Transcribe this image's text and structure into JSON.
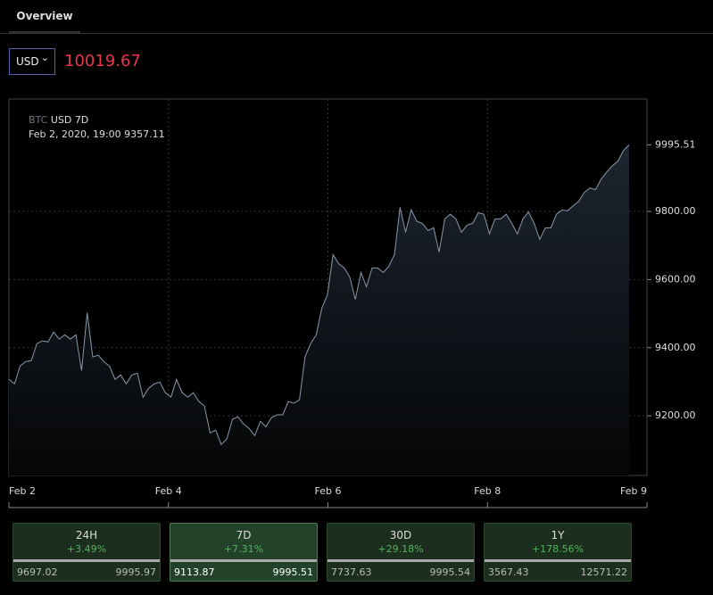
{
  "tab": "Overview",
  "currency": "USD",
  "price": "10019.67",
  "chart_data": {
    "type": "line",
    "legend_symbol": "BTC",
    "legend_pair": "USD 7D",
    "legend_info": "Feb 2, 2020, 19:00 9357.11",
    "color": "#8a97a8",
    "grid": true,
    "values": [
      9307,
      9294,
      9346,
      9359,
      9362,
      9412,
      9420,
      9417,
      9446,
      9425,
      9438,
      9425,
      9438,
      9333,
      9503,
      9373,
      9378,
      9359,
      9346,
      9307,
      9320,
      9294,
      9320,
      9325,
      9255,
      9281,
      9294,
      9299,
      9268,
      9255,
      9307,
      9268,
      9255,
      9268,
      9242,
      9229,
      9150,
      9158,
      9116,
      9132,
      9190,
      9197,
      9176,
      9163,
      9142,
      9184,
      9168,
      9195,
      9203,
      9203,
      9242,
      9237,
      9247,
      9373,
      9412,
      9438,
      9516,
      9555,
      9673,
      9647,
      9634,
      9608,
      9542,
      9621,
      9579,
      9634,
      9634,
      9621,
      9639,
      9673,
      9812,
      9739,
      9805,
      9771,
      9765,
      9744,
      9752,
      9681,
      9778,
      9792,
      9778,
      9739,
      9760,
      9765,
      9796,
      9792,
      9734,
      9778,
      9778,
      9792,
      9765,
      9734,
      9778,
      9799,
      9765,
      9718,
      9752,
      9752,
      9792,
      9804,
      9802,
      9817,
      9830,
      9856,
      9869,
      9864,
      9895,
      9916,
      9934,
      9948,
      9979,
      9995.51
    ],
    "ylim": [
      9025,
      10130
    ],
    "yticks": [
      {
        "value": 9200,
        "label": "9200.00"
      },
      {
        "value": 9400,
        "label": "9400.00"
      },
      {
        "value": 9600,
        "label": "9600.00"
      },
      {
        "value": 9800,
        "label": "9800.00"
      }
    ],
    "xlim": [
      0,
      8
    ],
    "xticks": [
      {
        "value": 0,
        "label": "Feb 2"
      },
      {
        "value": 2,
        "label": "Feb 4"
      },
      {
        "value": 4,
        "label": "Feb 6"
      },
      {
        "value": 6,
        "label": "Feb 8"
      },
      {
        "value": 8,
        "label": "Feb 9"
      }
    ]
  },
  "ranges": [
    {
      "name": "24H",
      "change": "+3.49%",
      "low": "9697.02",
      "high": "9995.97"
    },
    {
      "name": "7D",
      "change": "+7.31%",
      "low": "9113.87",
      "high": "9995.51",
      "selected": true
    },
    {
      "name": "30D",
      "change": "+29.18%",
      "low": "7737.63",
      "high": "9995.54"
    },
    {
      "name": "1Y",
      "change": "+178.56%",
      "low": "3567.43",
      "high": "12571.22"
    }
  ]
}
